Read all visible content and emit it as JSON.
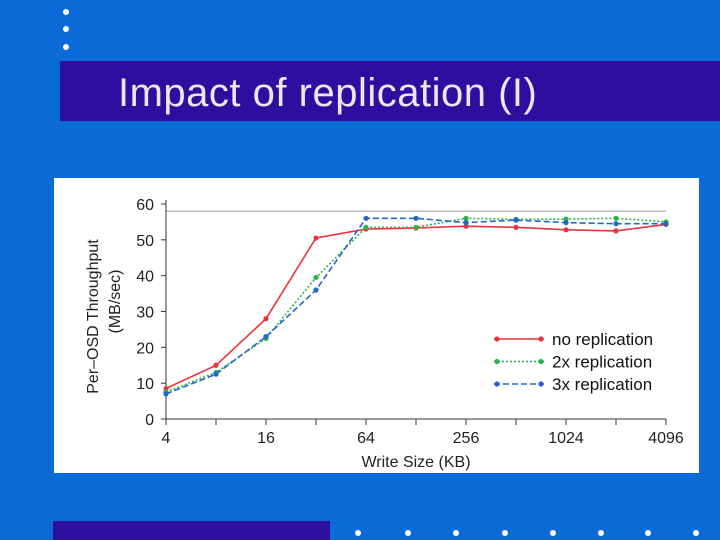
{
  "slide": {
    "title": "Impact of replication (I)",
    "background_color": "#0a6ad8",
    "title_bar_color": "#2d0fa0"
  },
  "chart_data": {
    "type": "line",
    "title": "",
    "xlabel": "Write Size (KB)",
    "ylabel_line1": "Per–OSD Throughput",
    "ylabel_line2": "(MB/sec)",
    "x": [
      4,
      8,
      16,
      32,
      64,
      128,
      256,
      512,
      1024,
      2048,
      4096
    ],
    "x_tick_labels": [
      "4",
      "16",
      "64",
      "256",
      "1024",
      "4096"
    ],
    "x_tick_values": [
      4,
      16,
      64,
      256,
      1024,
      4096
    ],
    "x_scale": "log2",
    "y_ticks": [
      0,
      10,
      20,
      30,
      40,
      50,
      60
    ],
    "ylim": [
      0,
      60
    ],
    "reference_line": 58,
    "legend_position": "bottom-right",
    "series": [
      {
        "name": "no replication",
        "color": "#e8343a",
        "dash": "solid",
        "values": [
          8.5,
          15,
          28,
          50.5,
          53,
          53.3,
          53.8,
          53.5,
          52.8,
          52.5,
          54.3
        ]
      },
      {
        "name": "2x replication",
        "color": "#2bb34a",
        "dash": "dotted",
        "values": [
          7.5,
          13,
          22.5,
          39.5,
          53.5,
          53.5,
          56,
          55.7,
          55.8,
          56,
          55
        ]
      },
      {
        "name": "3x replication",
        "color": "#2266c8",
        "dash": "dashed",
        "values": [
          7,
          12.5,
          23,
          36,
          56,
          56,
          54.8,
          55.5,
          54.8,
          54.5,
          54.5
        ]
      }
    ]
  }
}
